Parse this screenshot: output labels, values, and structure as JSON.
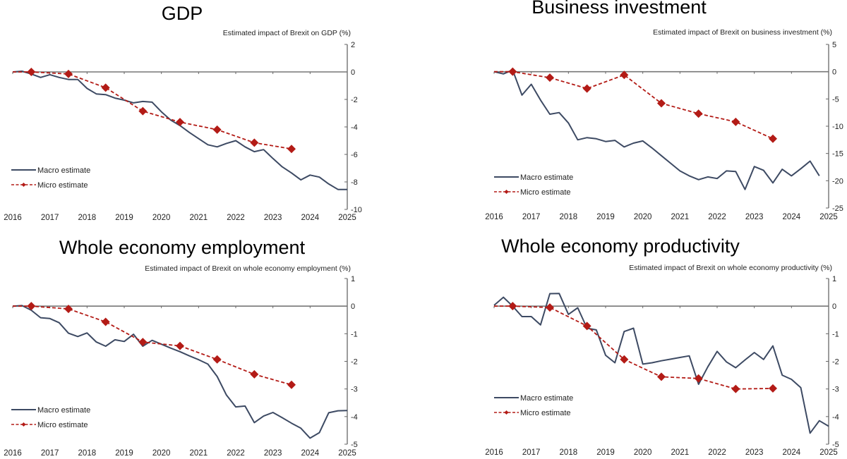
{
  "colors": {
    "macro": "#3d4a63",
    "micro": "#b31b16",
    "axis": "#666666",
    "text": "#222222"
  },
  "legend": {
    "macro_label": "Macro estimate",
    "micro_label": "Micro estimate"
  },
  "chart_data": [
    {
      "type": "line",
      "title": "GDP",
      "subtitle": "Estimated impact of Brexit on GDP (%)",
      "xlabel": "",
      "ylabel": "Estimated impact of Brexit on GDP (%)",
      "xlim": [
        2016,
        2025
      ],
      "ylim": [
        -10,
        2
      ],
      "x_ticks": [
        2016,
        2017,
        2018,
        2019,
        2020,
        2021,
        2022,
        2023,
        2024,
        2025
      ],
      "x_tick_labels": [
        "2016",
        "2017",
        "2018",
        "2019",
        "2020",
        "2021",
        "2022",
        "2023",
        "2024",
        "2025"
      ],
      "y_ticks": [
        2,
        0,
        -2,
        -4,
        -6,
        -8,
        -10
      ],
      "y_tick_labels": [
        "2",
        "0",
        "-2",
        "-4",
        "-6",
        "-8",
        "-10"
      ],
      "legend_position": "bottom-left",
      "series": [
        {
          "name": "Macro estimate",
          "style": "solid",
          "x": [
            2016.0,
            2016.25,
            2016.5,
            2016.75,
            2017.0,
            2017.25,
            2017.5,
            2017.75,
            2018.0,
            2018.25,
            2018.5,
            2018.75,
            2019.0,
            2019.25,
            2019.5,
            2019.75,
            2020.0,
            2020.25,
            2020.5,
            2020.75,
            2021.0,
            2021.25,
            2021.5,
            2021.75,
            2022.0,
            2022.25,
            2022.5,
            2022.75,
            2023.0,
            2023.25,
            2023.5,
            2023.75,
            2024.0,
            2024.25,
            2024.5,
            2024.75,
            2025.0
          ],
          "y": [
            0,
            0.05,
            -0.15,
            -0.4,
            -0.2,
            -0.4,
            -0.55,
            -0.55,
            -1.2,
            -1.6,
            -1.65,
            -1.9,
            -2.05,
            -2.25,
            -2.15,
            -2.2,
            -2.9,
            -3.5,
            -3.9,
            -4.4,
            -4.85,
            -5.3,
            -5.45,
            -5.2,
            -5.0,
            -5.45,
            -5.8,
            -5.65,
            -6.3,
            -6.9,
            -7.35,
            -7.85,
            -7.5,
            -7.65,
            -8.15,
            -8.55,
            -8.55
          ]
        },
        {
          "name": "Micro estimate",
          "style": "dashed-diamond",
          "x": [
            2016.0,
            2016.5,
            2017.5,
            2018.5,
            2019.5,
            2020.5,
            2021.5,
            2022.5,
            2023.5
          ],
          "y": [
            0,
            0,
            -0.15,
            -1.15,
            -2.85,
            -3.65,
            -4.2,
            -5.15,
            -5.6
          ],
          "markers_from_index": 1
        }
      ]
    },
    {
      "type": "line",
      "title": "Business investment",
      "subtitle": "Estimated impact of Brexit on business investment (%)",
      "xlabel": "",
      "ylabel": "Estimated impact of Brexit on business investment (%)",
      "xlim": [
        2016,
        2025
      ],
      "ylim": [
        -25,
        5
      ],
      "x_ticks": [
        2016,
        2017,
        2018,
        2019,
        2020,
        2021,
        2022,
        2023,
        2024,
        2025
      ],
      "x_tick_labels": [
        "2016",
        "2017",
        "2018",
        "2019",
        "2020",
        "2021",
        "2022",
        "2023",
        "2024",
        "2025"
      ],
      "y_ticks": [
        5,
        0,
        -5,
        -10,
        -15,
        -20,
        -25
      ],
      "y_tick_labels": [
        "5",
        "0",
        "-5",
        "-10",
        "-15",
        "-20",
        "-25"
      ],
      "legend_position": "bottom-left",
      "series": [
        {
          "name": "Macro estimate",
          "style": "solid",
          "x": [
            2016.0,
            2016.25,
            2016.5,
            2016.75,
            2017.0,
            2017.25,
            2017.5,
            2017.75,
            2018.0,
            2018.25,
            2018.5,
            2018.75,
            2019.0,
            2019.25,
            2019.5,
            2019.75,
            2020.0,
            2020.25,
            2020.5,
            2020.75,
            2021.0,
            2021.25,
            2021.5,
            2021.75,
            2022.0,
            2022.25,
            2022.5,
            2022.75,
            2023.0,
            2023.25,
            2023.5,
            2023.75,
            2024.0,
            2024.25,
            2024.5,
            2024.75
          ],
          "y": [
            0,
            -0.4,
            0.3,
            -4.3,
            -2.3,
            -5.2,
            -7.8,
            -7.5,
            -9.4,
            -12.5,
            -12.1,
            -12.3,
            -12.8,
            -12.6,
            -13.8,
            -13.1,
            -12.7,
            -14.0,
            -15.4,
            -16.8,
            -18.2,
            -19.1,
            -19.8,
            -19.3,
            -19.6,
            -18.2,
            -18.3,
            -21.6,
            -17.4,
            -18.1,
            -20.4,
            -17.9,
            -19.1,
            -17.8,
            -16.4,
            -19.1
          ]
        },
        {
          "name": "Micro estimate",
          "style": "dashed-diamond",
          "x": [
            2016.0,
            2016.5,
            2017.5,
            2018.5,
            2019.5,
            2020.5,
            2021.5,
            2022.5,
            2023.5
          ],
          "y": [
            0,
            0,
            -1.1,
            -3.1,
            -0.6,
            -5.8,
            -7.7,
            -9.2,
            -12.3
          ],
          "markers_from_index": 1
        }
      ]
    },
    {
      "type": "line",
      "title": "Whole economy employment",
      "subtitle": "Estimated impact of Brexit on whole economy employment (%)",
      "xlabel": "",
      "ylabel": "Estimated impact of Brexit on whole economy employment (%)",
      "xlim": [
        2016,
        2025
      ],
      "ylim": [
        -5,
        1
      ],
      "x_ticks": [
        2016,
        2017,
        2018,
        2019,
        2020,
        2021,
        2022,
        2023,
        2024,
        2025
      ],
      "x_tick_labels": [
        "2016",
        "2017",
        "2018",
        "2019",
        "2020",
        "2021",
        "2022",
        "2023",
        "2024",
        "2025"
      ],
      "y_ticks": [
        1,
        0,
        -1,
        -2,
        -3,
        -4,
        -5
      ],
      "y_tick_labels": [
        "1",
        "0",
        "-1",
        "-2",
        "-3",
        "-4",
        "-5"
      ],
      "legend_position": "bottom-left",
      "series": [
        {
          "name": "Macro estimate",
          "style": "solid",
          "x": [
            2016.0,
            2016.25,
            2016.5,
            2016.75,
            2017.0,
            2017.25,
            2017.5,
            2017.75,
            2018.0,
            2018.25,
            2018.5,
            2018.75,
            2019.0,
            2019.25,
            2019.5,
            2019.75,
            2020.0,
            2020.25,
            2020.5,
            2020.75,
            2021.0,
            2021.25,
            2021.5,
            2021.75,
            2022.0,
            2022.25,
            2022.5,
            2022.75,
            2023.0,
            2023.25,
            2023.5,
            2023.75,
            2024.0,
            2024.25,
            2024.5,
            2024.75,
            2025.0
          ],
          "y": [
            0,
            0.02,
            -0.15,
            -0.42,
            -0.45,
            -0.6,
            -0.98,
            -1.1,
            -0.97,
            -1.3,
            -1.45,
            -1.22,
            -1.28,
            -1.02,
            -1.45,
            -1.24,
            -1.38,
            -1.52,
            -1.65,
            -1.8,
            -1.94,
            -2.1,
            -2.55,
            -3.22,
            -3.65,
            -3.62,
            -4.22,
            -3.98,
            -3.85,
            -4.04,
            -4.24,
            -4.42,
            -4.78,
            -4.58,
            -3.86,
            -3.79,
            -3.78
          ]
        },
        {
          "name": "Micro estimate",
          "style": "dashed-diamond",
          "x": [
            2016.0,
            2016.5,
            2017.5,
            2018.5,
            2019.5,
            2020.5,
            2021.5,
            2022.5,
            2023.5
          ],
          "y": [
            0,
            0,
            -0.1,
            -0.57,
            -1.3,
            -1.44,
            -1.93,
            -2.47,
            -2.85
          ],
          "markers_from_index": 1
        }
      ]
    },
    {
      "type": "line",
      "title": "Whole economy productivity",
      "subtitle": "Estimated impact of Brexit on whole economy productivity (%)",
      "xlabel": "",
      "ylabel": "Estimated impact of Brexit on whole economy productivity (%)",
      "xlim": [
        2016,
        2025
      ],
      "ylim": [
        -5,
        1
      ],
      "x_ticks": [
        2016,
        2017,
        2018,
        2019,
        2020,
        2021,
        2022,
        2023,
        2024,
        2025
      ],
      "x_tick_labels": [
        "2016",
        "2017",
        "2018",
        "2019",
        "2020",
        "2021",
        "2022",
        "2023",
        "2024",
        "2025"
      ],
      "y_ticks": [
        1,
        0,
        -1,
        -2,
        -3,
        -4,
        -5
      ],
      "y_tick_labels": [
        "1",
        "0",
        "-1",
        "-2",
        "-3",
        "-4",
        "-5"
      ],
      "legend_position": "bottom-left",
      "series": [
        {
          "name": "Macro estimate",
          "style": "solid",
          "x": [
            2016.0,
            2016.25,
            2016.5,
            2016.75,
            2017.0,
            2017.25,
            2017.5,
            2017.75,
            2018.0,
            2018.25,
            2018.5,
            2018.75,
            2019.0,
            2019.25,
            2019.5,
            2019.75,
            2020.0,
            2020.25,
            2020.5,
            2020.75,
            2021.0,
            2021.25,
            2021.5,
            2021.75,
            2022.0,
            2022.25,
            2022.5,
            2022.75,
            2023.0,
            2023.25,
            2023.5,
            2023.75,
            2024.0,
            2024.25,
            2024.5,
            2024.75,
            2025.0
          ],
          "y": [
            0.03,
            0.32,
            0,
            -0.38,
            -0.38,
            -0.68,
            0.45,
            0.46,
            -0.3,
            -0.06,
            -0.8,
            -0.86,
            -1.78,
            -2.05,
            -0.92,
            -0.8,
            -2.1,
            -2.05,
            -1.98,
            -1.92,
            -1.86,
            -1.8,
            -2.83,
            -2.2,
            -1.64,
            -2.02,
            -2.23,
            -1.95,
            -1.68,
            -1.93,
            -1.44,
            -2.5,
            -2.65,
            -2.95,
            -4.6,
            -4.15,
            -4.35
          ]
        },
        {
          "name": "Micro estimate",
          "style": "dashed-diamond",
          "x": [
            2016.0,
            2016.5,
            2017.5,
            2018.5,
            2019.5,
            2020.5,
            2021.5,
            2022.5,
            2023.5
          ],
          "y": [
            0,
            0,
            -0.05,
            -0.72,
            -1.93,
            -2.56,
            -2.62,
            -3.0,
            -2.98
          ],
          "markers_from_index": 1
        }
      ]
    }
  ]
}
